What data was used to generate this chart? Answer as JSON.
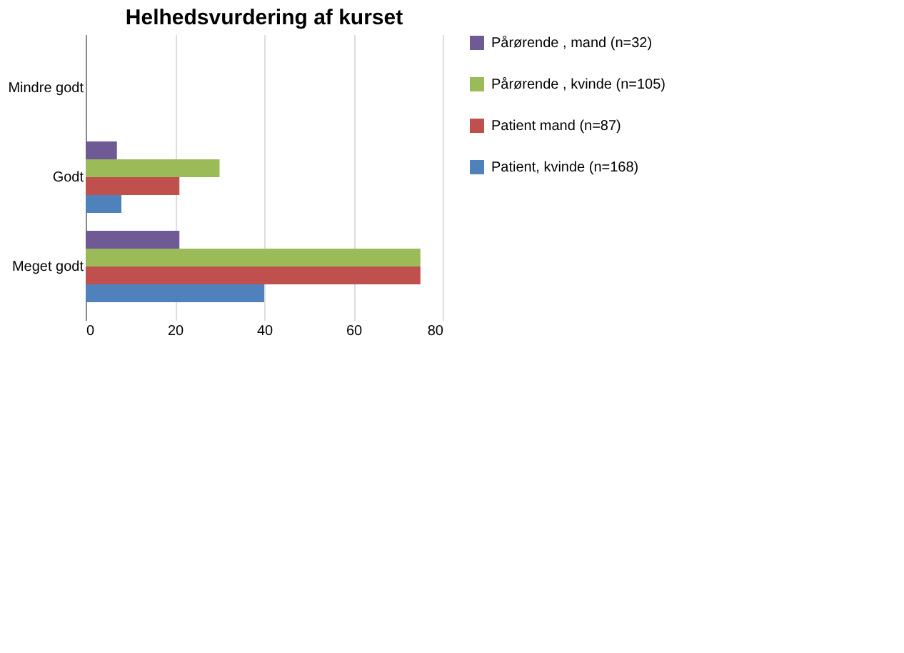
{
  "chart_data": {
    "type": "bar",
    "orientation": "horizontal",
    "title": "Helhedsvurdering af kurset",
    "categories": [
      "Mindre godt",
      "Godt",
      "Meget godt"
    ],
    "series": [
      {
        "name": "Pårørende , mand (n=32)",
        "color": "#6f5a96",
        "values": [
          0,
          7,
          21
        ]
      },
      {
        "name": "Pårørende , kvinde (n=105)",
        "color": "#9bbb59",
        "values": [
          0,
          30,
          75
        ]
      },
      {
        "name": "Patient mand (n=87)",
        "color": "#c0504d",
        "values": [
          0,
          21,
          75
        ]
      },
      {
        "name": "Patient, kvinde (n=168)",
        "color": "#4f81bd",
        "values": [
          0,
          8,
          40
        ]
      }
    ],
    "xlim": [
      0,
      80
    ],
    "xticks": [
      0,
      20,
      40,
      60,
      80
    ],
    "grid": "x",
    "legend": "right"
  }
}
